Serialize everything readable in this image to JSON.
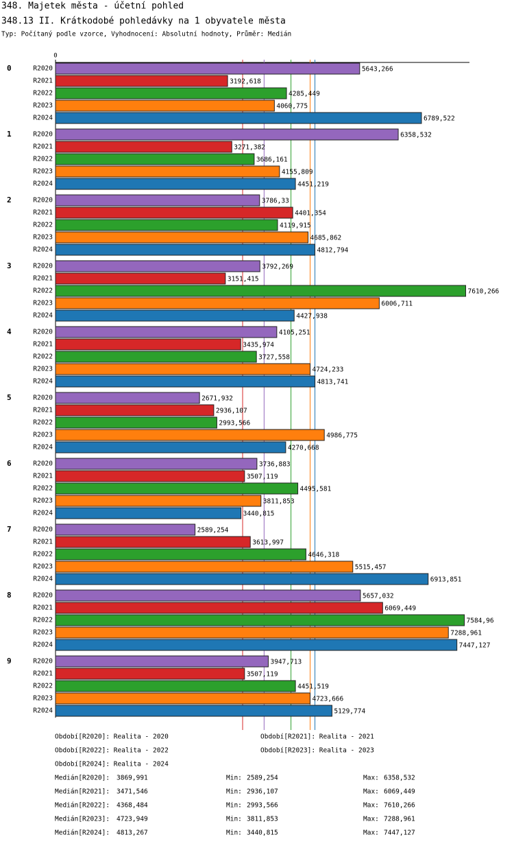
{
  "chart_data": {
    "type": "grouped-hbar",
    "title": "348. Majetek města - účetní pohled",
    "subtitle": "348.13 II. Krátkodobé pohledávky na 1 obyvatele města",
    "description": "Typ: Počítaný podle vzorce, Vyhodnocení: Absolutní hodnoty, Průměr: Medián",
    "categories": [
      "0",
      "1",
      "2",
      "3",
      "4",
      "5",
      "6",
      "7",
      "8",
      "9"
    ],
    "xlim": [
      0,
      7680
    ],
    "xticks": [
      0
    ],
    "series": [
      {
        "name": "R2020",
        "color": "#9467bd",
        "legend": "Období[R2020]: Realita - 2020",
        "values": [
          5643.266,
          6358.532,
          3786.33,
          3792.269,
          4105.251,
          2671.932,
          3736.883,
          2589.254,
          5657.032,
          3947.713
        ],
        "value_labels": [
          "5643,266",
          "6358,532",
          "3786,33",
          "3792,269",
          "4105,251",
          "2671,932",
          "3736,883",
          "2589,254",
          "5657,032",
          "3947,713"
        ]
      },
      {
        "name": "R2021",
        "color": "#d62728",
        "legend": "Období[R2021]: Realita - 2021",
        "values": [
          3192.618,
          3271.382,
          4401.354,
          3151.415,
          3435.974,
          2936.107,
          3507.119,
          3613.997,
          6069.449,
          3507.119
        ],
        "value_labels": [
          "3192,618",
          "3271,382",
          "4401,354",
          "3151,415",
          "3435,974",
          "2936,107",
          "3507,119",
          "3613,997",
          "6069,449",
          "3507,119"
        ]
      },
      {
        "name": "R2022",
        "color": "#2ca02c",
        "legend": "Období[R2022]: Realita - 2022",
        "values": [
          4285.449,
          3686.161,
          4119.915,
          7610.266,
          3727.558,
          2993.566,
          4495.581,
          4646.318,
          7584.96,
          4451.519
        ],
        "value_labels": [
          "4285,449",
          "3686,161",
          "4119,915",
          "7610,266",
          "3727,558",
          "2993,566",
          "4495,581",
          "4646,318",
          "7584,96",
          "4451,519"
        ]
      },
      {
        "name": "R2023",
        "color": "#ff7f0e",
        "legend": "Období[R2023]: Realita - 2023",
        "values": [
          4060.775,
          4155.809,
          4685.862,
          6006.711,
          4724.233,
          4986.775,
          3811.853,
          5515.457,
          7288.961,
          4723.666
        ],
        "value_labels": [
          "4060,775",
          "4155,809",
          "4685,862",
          "6006,711",
          "4724,233",
          "4986,775",
          "3811,853",
          "5515,457",
          "7288,961",
          "4723,666"
        ]
      },
      {
        "name": "R2024",
        "color": "#1f77b4",
        "legend": "Období[R2024]: Realita - 2024",
        "values": [
          6789.522,
          4451.219,
          4812.794,
          4427.938,
          4813.741,
          4270.668,
          3440.815,
          6913.851,
          7447.127,
          5129.774
        ],
        "value_labels": [
          "6789,522",
          "4451,219",
          "4812,794",
          "4427,938",
          "4813,741",
          "4270,668",
          "3440,815",
          "6913,851",
          "7447,127",
          "5129,774"
        ]
      }
    ],
    "min_label": "Min:",
    "max_label": "Max:",
    "stats": [
      {
        "label": "Medián[R2020]:",
        "median": {
          "value": 3869.991,
          "label": "3869,991"
        },
        "min": {
          "value": 2589.254,
          "label": "2589,254"
        },
        "max": {
          "value": 6358.532,
          "label": "6358,532"
        }
      },
      {
        "label": "Medián[R2021]:",
        "median": {
          "value": 3471.546,
          "label": "3471,546"
        },
        "min": {
          "value": 2936.107,
          "label": "2936,107"
        },
        "max": {
          "value": 6069.449,
          "label": "6069,449"
        }
      },
      {
        "label": "Medián[R2022]:",
        "median": {
          "value": 4368.484,
          "label": "4368,484"
        },
        "min": {
          "value": 2993.566,
          "label": "2993,566"
        },
        "max": {
          "value": 7610.266,
          "label": "7610,266"
        }
      },
      {
        "label": "Medián[R2023]:",
        "median": {
          "value": 4723.949,
          "label": "4723,949"
        },
        "min": {
          "value": 3811.853,
          "label": "3811,853"
        },
        "max": {
          "value": 7288.961,
          "label": "7288,961"
        }
      },
      {
        "label": "Medián[R2024]:",
        "median": {
          "value": 4813.267,
          "label": "4813,267"
        },
        "min": {
          "value": 3440.815,
          "label": "3440,815"
        },
        "max": {
          "value": 7447.127,
          "label": "7447,127"
        }
      }
    ]
  }
}
